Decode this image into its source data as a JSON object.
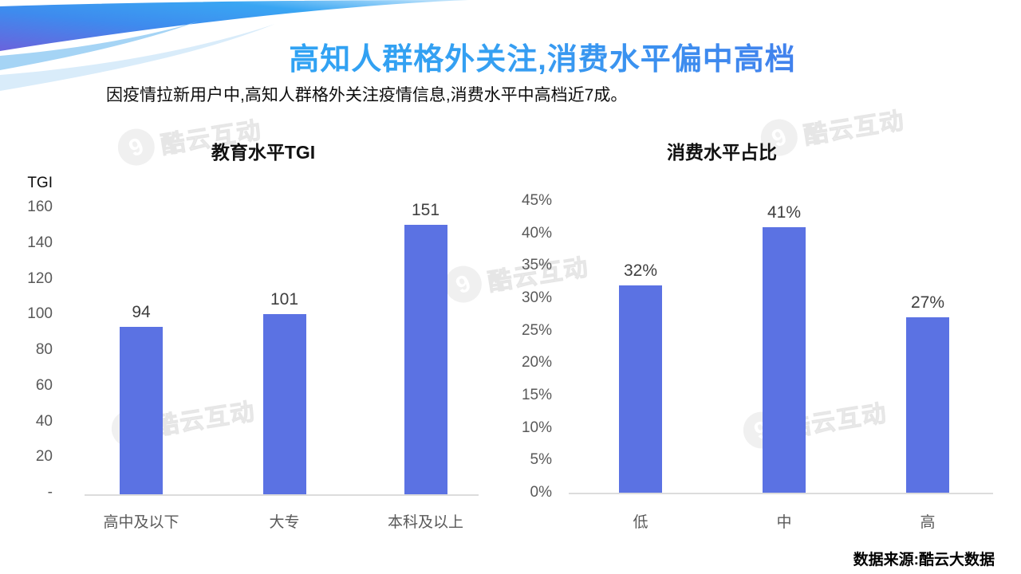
{
  "page": {
    "title": "高知人群格外关注,消费水平偏中高档",
    "subtitle": "因疫情拉新用户中,高知人群格外关注疫情信息,消费水平中高档近7成。",
    "source": "数据来源:酷云大数据",
    "watermark_text": "酷云互动"
  },
  "colors": {
    "bar": "#5B72E3",
    "title_gradient_start": "#2AA4F4",
    "title_gradient_end": "#4A6AE9",
    "axis_text": "#595959",
    "value_text": "#3F3F3F",
    "baseline": "#DCDCDC",
    "watermark": "#F1F1F1"
  },
  "chart_data": [
    {
      "type": "bar",
      "title": "教育水平TGI",
      "ylabel": "TGI",
      "xlabel": "",
      "categories": [
        "高中及以下",
        "大专",
        "本科及以上"
      ],
      "values": [
        94,
        101,
        151
      ],
      "data_labels": [
        "94",
        "101",
        "151"
      ],
      "yticks": [
        "160",
        "140",
        "120",
        "100",
        "80",
        "60",
        "40",
        "20",
        "-"
      ],
      "ylim": [
        0,
        160
      ],
      "grid": false,
      "legend": "none"
    },
    {
      "type": "bar",
      "title": "消费水平占比",
      "ylabel": "",
      "xlabel": "",
      "categories": [
        "低",
        "中",
        "高"
      ],
      "values": [
        32,
        41,
        27
      ],
      "data_labels": [
        "32%",
        "41%",
        "27%"
      ],
      "yticks": [
        "45%",
        "40%",
        "35%",
        "30%",
        "25%",
        "20%",
        "15%",
        "10%",
        "5%",
        "0%"
      ],
      "ylim": [
        0,
        45
      ],
      "grid": false,
      "legend": "none"
    }
  ]
}
